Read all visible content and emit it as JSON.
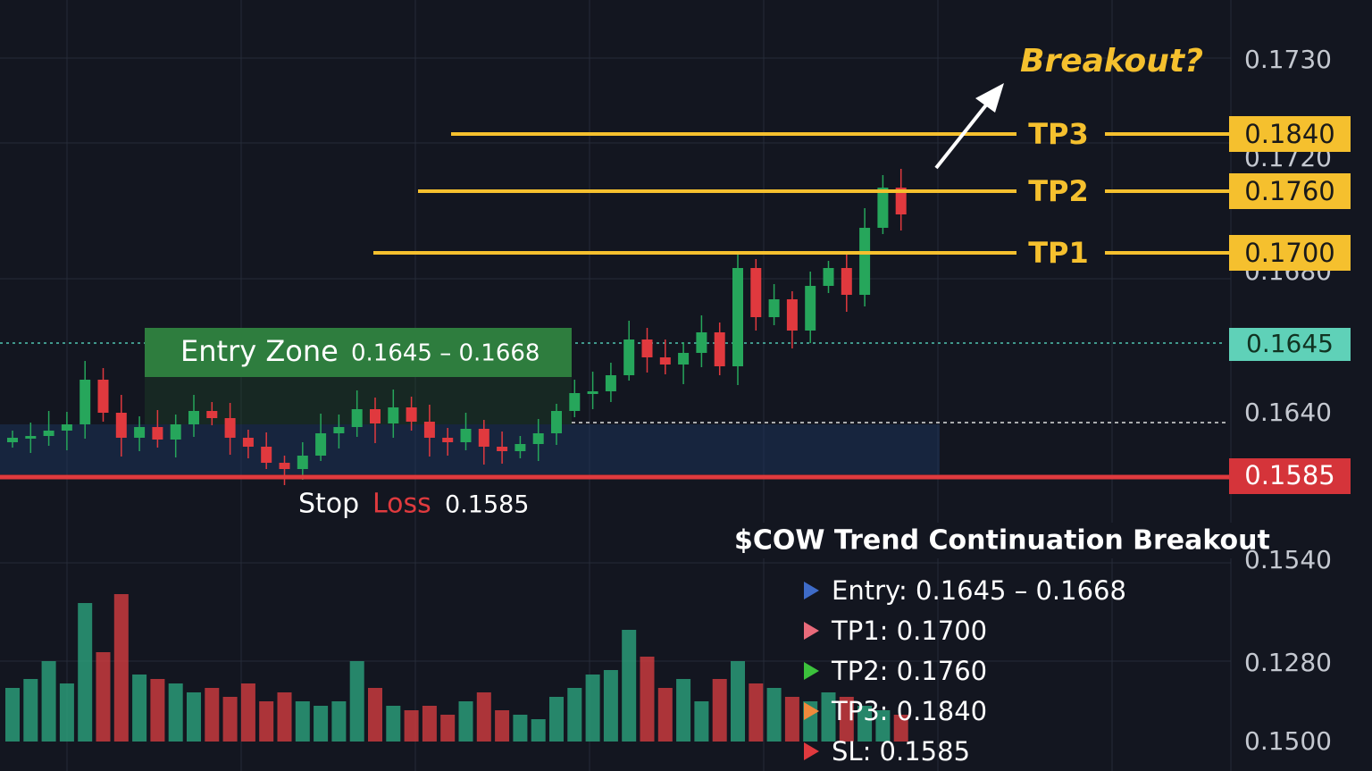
{
  "annotation": "Breakout?",
  "levels": [
    {
      "label": "TP3",
      "price": "0.1840"
    },
    {
      "label": "TP2",
      "price": "0.1760"
    },
    {
      "label": "TP1",
      "price": "0.1700"
    }
  ],
  "entry_zone": {
    "label": "Entry Zone",
    "range": "0.1645 – 0.1668"
  },
  "entry_tag": "0.1645",
  "stop_loss": {
    "word1": "Stop",
    "word2": "Loss",
    "price": "0.1585"
  },
  "axis_labels": [
    "0.1730",
    "0.1720",
    "0.1680",
    "0.1640",
    "0.1540",
    "0.1280",
    "0.1500"
  ],
  "legend": {
    "title": "$COW Trend Continuation Breakout",
    "items": [
      "Entry: 0.1645 – 0.1668",
      "TP1: 0.1700",
      "TP2: 0.1760",
      "TP3: 0.1840",
      "SL: 0.1585"
    ]
  }
}
